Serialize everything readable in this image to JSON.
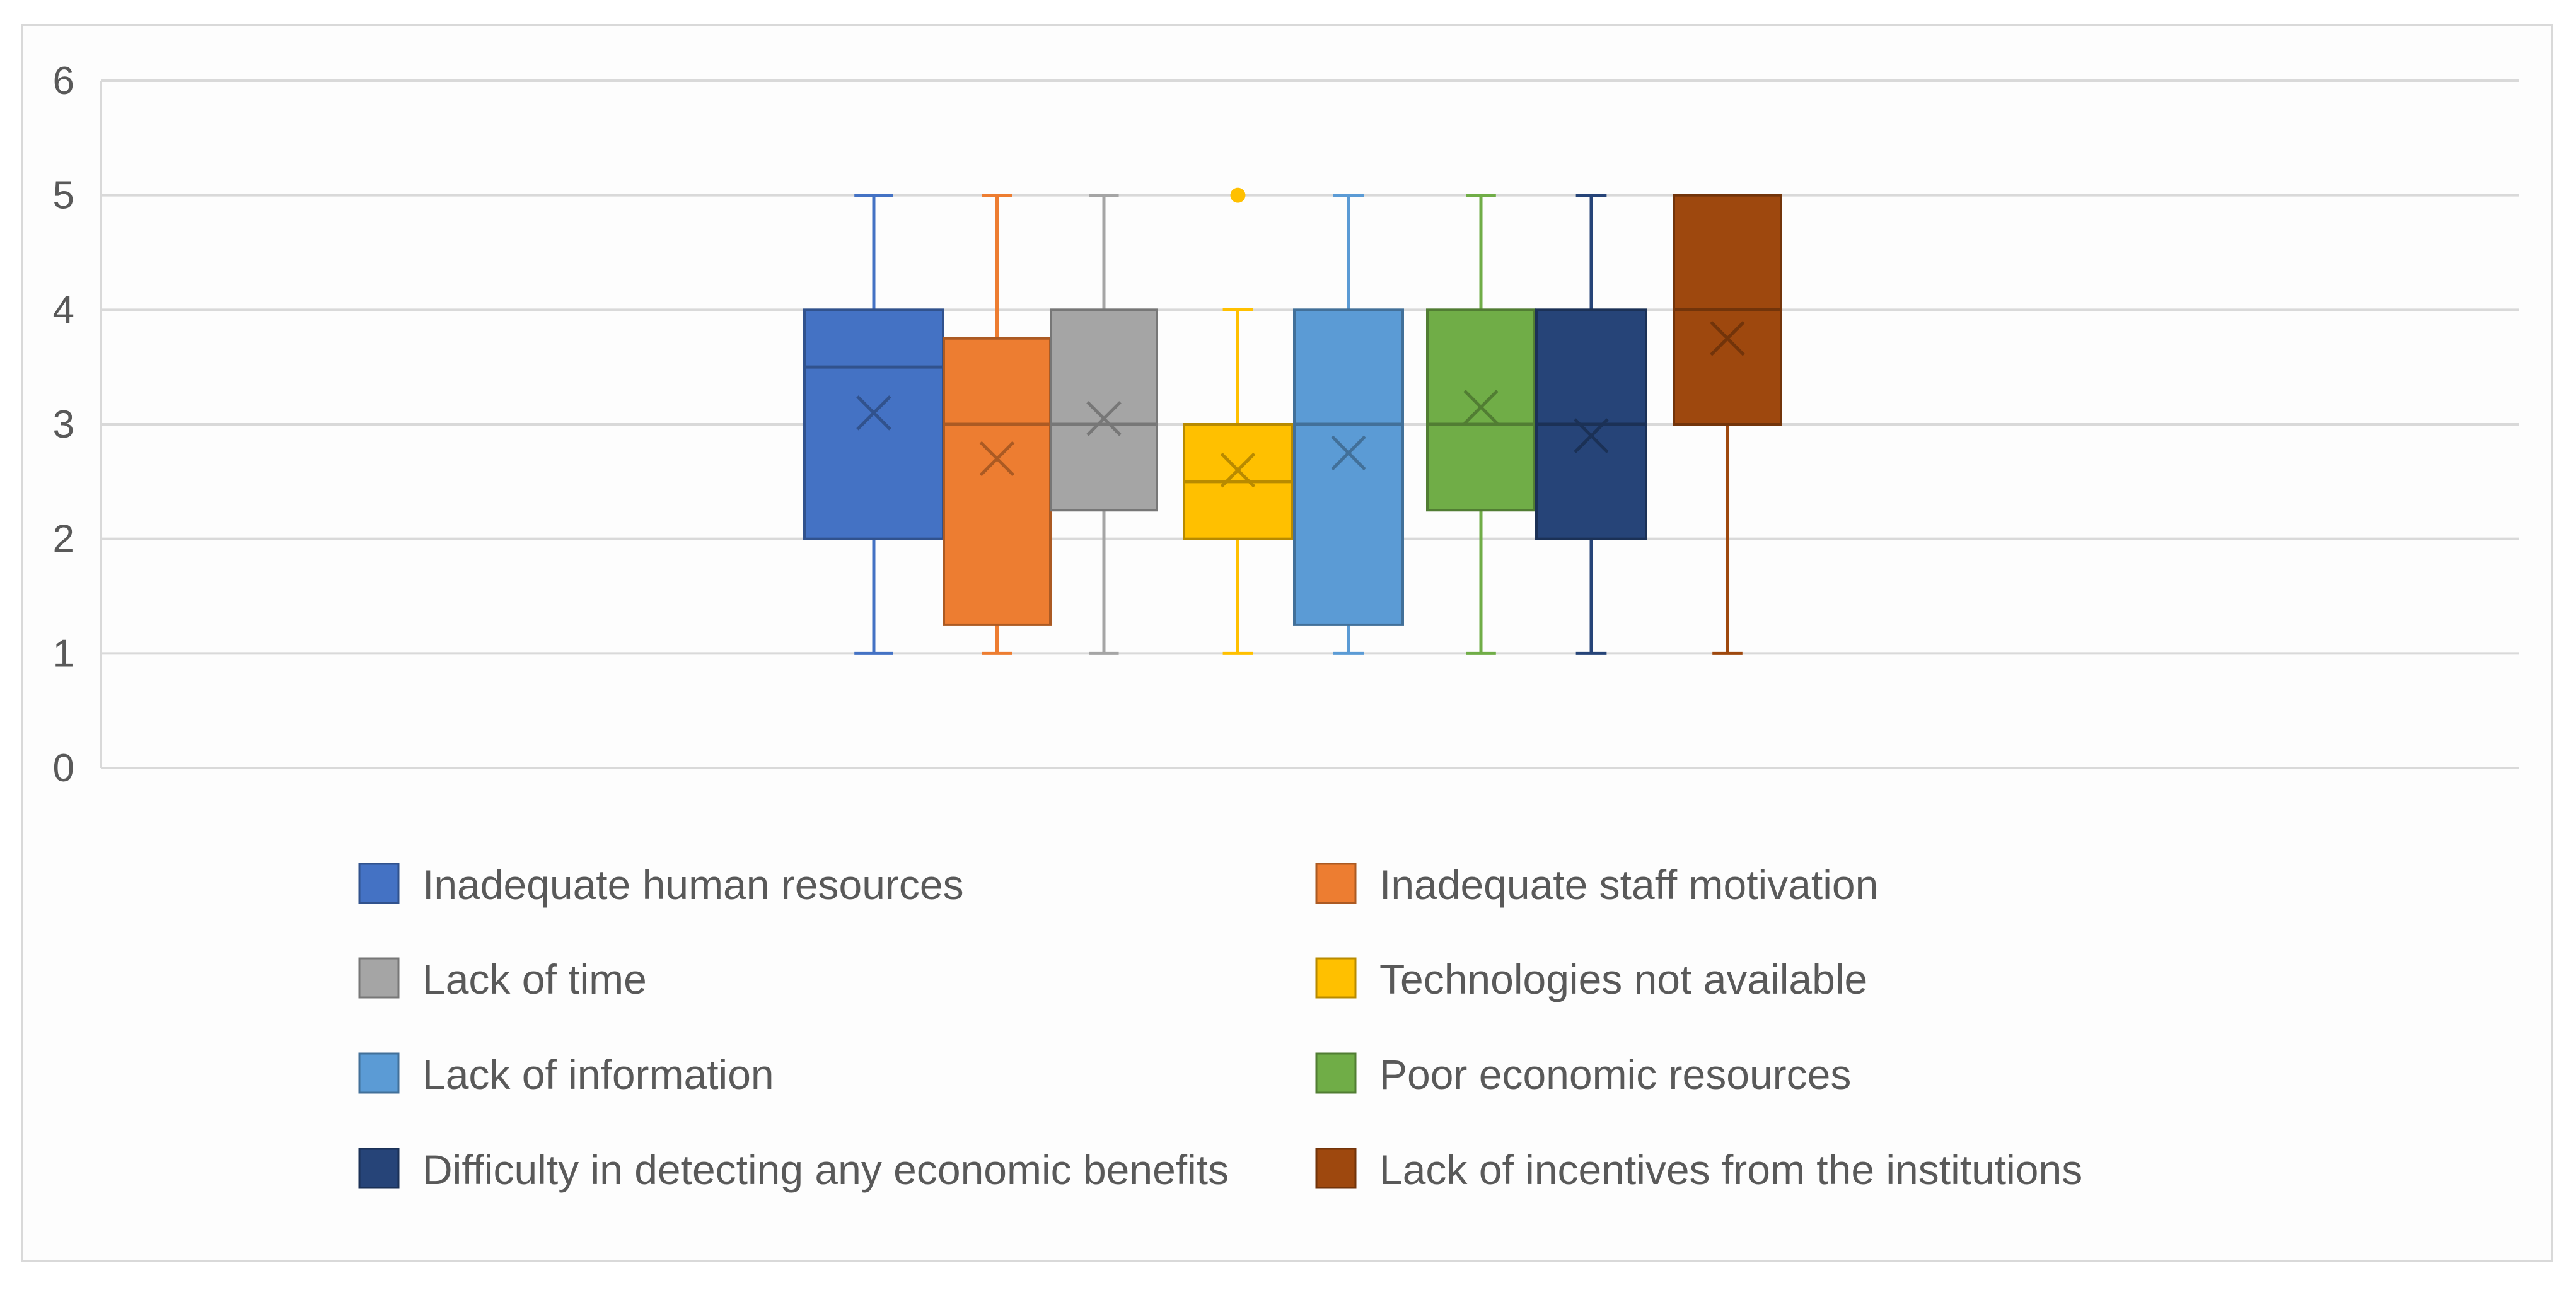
{
  "chart_data": {
    "type": "boxplot",
    "title": "",
    "xlabel": "",
    "ylabel": "",
    "ylim": [
      0,
      6
    ],
    "yticks": [
      0,
      1,
      2,
      3,
      4,
      5,
      6
    ],
    "grid": true,
    "legend_position": "bottom",
    "series": [
      {
        "name": "Inadequate human resources",
        "color": "#4472C4",
        "whisker_low": 1,
        "q1": 2,
        "median": 3.5,
        "q3": 4,
        "whisker_high": 5,
        "mean": 3.1,
        "outliers": []
      },
      {
        "name": "Inadequate staff motivation",
        "color": "#ED7D31",
        "whisker_low": 1,
        "q1": 1.25,
        "median": 3,
        "q3": 3.75,
        "whisker_high": 5,
        "mean": 2.7,
        "outliers": []
      },
      {
        "name": "Lack of time",
        "color": "#A5A5A5",
        "whisker_low": 1,
        "q1": 2.25,
        "median": 3,
        "q3": 4,
        "whisker_high": 5,
        "mean": 3.05,
        "outliers": []
      },
      {
        "name": "Technologies not available",
        "color": "#FFC000",
        "whisker_low": 1,
        "q1": 2,
        "median": 2.5,
        "q3": 3,
        "whisker_high": 4,
        "mean": 2.6,
        "outliers": [
          5
        ]
      },
      {
        "name": "Lack of information",
        "color": "#5B9BD5",
        "whisker_low": 1,
        "q1": 1.25,
        "median": 3,
        "q3": 4,
        "whisker_high": 5,
        "mean": 2.75,
        "outliers": []
      },
      {
        "name": "Poor economic resources",
        "color": "#70AD47",
        "whisker_low": 1,
        "q1": 2.25,
        "median": 3,
        "q3": 4,
        "whisker_high": 5,
        "mean": 3.15,
        "outliers": []
      },
      {
        "name": "Difficulty in detecting any economic benefits",
        "color": "#264478",
        "whisker_low": 1,
        "q1": 2,
        "median": 3,
        "q3": 4,
        "whisker_high": 5,
        "mean": 2.9,
        "outliers": []
      },
      {
        "name": "Lack of incentives from the institutions",
        "color": "#9E480E",
        "whisker_low": 1,
        "q1": 3,
        "median": 4,
        "q3": 5,
        "whisker_high": 5,
        "mean": 3.75,
        "outliers": []
      }
    ]
  }
}
